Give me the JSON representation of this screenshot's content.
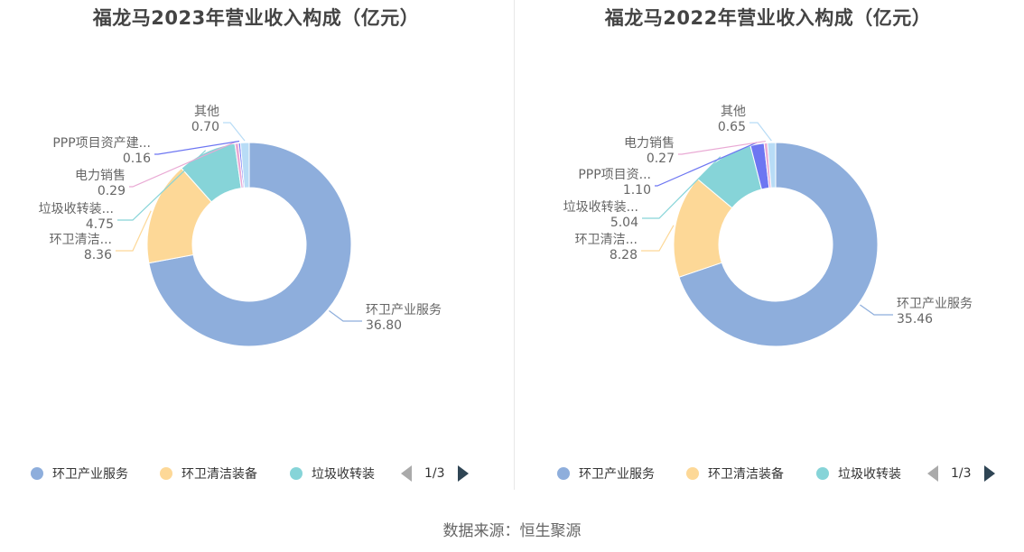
{
  "source": "数据来源：恒生聚源",
  "legend_colors": [
    "#8eaedc",
    "#fdd897",
    "#86d4d8"
  ],
  "chart_data": [
    {
      "type": "pie",
      "title": "福龙马2023年营业收入构成（亿元）",
      "donut": true,
      "legend_placement": "bottom",
      "legend": {
        "items": [
          "环卫产业服务",
          "环卫清洁装备",
          "垃圾收转装"
        ],
        "page": "1/3"
      },
      "slices": [
        {
          "label": "环卫产业服务",
          "display_label": "环卫产业服务",
          "value": 36.8,
          "value_text": "36.80",
          "color": "#8eaedc"
        },
        {
          "label": "环卫清洁装备",
          "display_label": "环卫清洁...",
          "value": 8.36,
          "value_text": "8.36",
          "color": "#fdd897"
        },
        {
          "label": "垃圾收转装",
          "display_label": "垃圾收转装...",
          "value": 4.75,
          "value_text": "4.75",
          "color": "#86d4d8"
        },
        {
          "label": "电力销售",
          "display_label": "电力销售",
          "value": 0.29,
          "value_text": "0.29",
          "color": "#e9a9d4"
        },
        {
          "label": "PPP项目资产建",
          "display_label": "PPP项目资产建...",
          "value": 0.16,
          "value_text": "0.16",
          "color": "#6d76f2"
        },
        {
          "label": "其他",
          "display_label": "其他",
          "value": 0.7,
          "value_text": "0.70",
          "color": "#b8dcf6"
        }
      ]
    },
    {
      "type": "pie",
      "title": "福龙马2022年营业收入构成（亿元）",
      "donut": true,
      "legend_placement": "bottom",
      "legend": {
        "items": [
          "环卫产业服务",
          "环卫清洁装备",
          "垃圾收转装"
        ],
        "page": "1/3"
      },
      "slices": [
        {
          "label": "环卫产业服务",
          "display_label": "环卫产业服务",
          "value": 35.46,
          "value_text": "35.46",
          "color": "#8eaedc"
        },
        {
          "label": "环卫清洁装备",
          "display_label": "环卫清洁...",
          "value": 8.28,
          "value_text": "8.28",
          "color": "#fdd897"
        },
        {
          "label": "垃圾收转装",
          "display_label": "垃圾收转装...",
          "value": 5.04,
          "value_text": "5.04",
          "color": "#86d4d8"
        },
        {
          "label": "PPP项目资",
          "display_label": "PPP项目资...",
          "value": 1.1,
          "value_text": "1.10",
          "color": "#6d76f2"
        },
        {
          "label": "电力销售",
          "display_label": "电力销售",
          "value": 0.27,
          "value_text": "0.27",
          "color": "#e9a9d4"
        },
        {
          "label": "其他",
          "display_label": "其他",
          "value": 0.65,
          "value_text": "0.65",
          "color": "#b8dcf6"
        }
      ]
    }
  ]
}
